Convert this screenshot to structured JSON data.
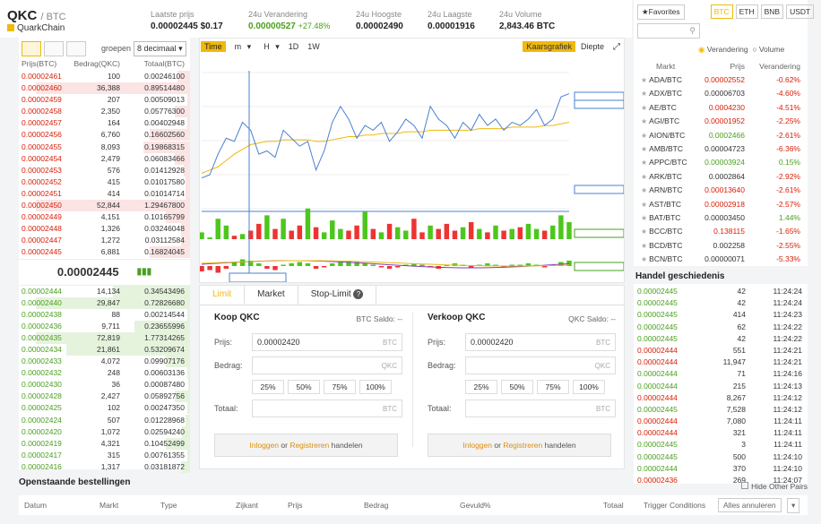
{
  "header": {
    "symbol": "QKC",
    "quote": "/ BTC",
    "coin_name": "QuarkChain",
    "stats": [
      {
        "label": "Laatste prijs",
        "value": "0.00002445 $0.17"
      },
      {
        "label": "24u Verandering",
        "value": "0.00000527",
        "change": "+27.48%"
      },
      {
        "label": "24u Hoogste",
        "value": "0.00002490"
      },
      {
        "label": "24u Laagste",
        "value": "0.00001916"
      },
      {
        "label": "24u Volume",
        "value": "2,843.46 BTC"
      }
    ]
  },
  "orderbook": {
    "group_label": "groepen",
    "group_value": "8 decimaal",
    "columns": [
      "Prijs(BTC)",
      "Bedrag(QKC)",
      "Totaal(BTC)"
    ],
    "sells": [
      [
        "0.00002461",
        "100",
        "0.00246100",
        8
      ],
      [
        "0.00002460",
        "36,388",
        "0.89514480",
        100
      ],
      [
        "0.00002459",
        "207",
        "0.00509013",
        2
      ],
      [
        "0.00002458",
        "2,350",
        "0.05776300",
        10
      ],
      [
        "0.00002457",
        "164",
        "0.00402948",
        2
      ],
      [
        "0.00002456",
        "6,760",
        "0.16602560",
        26
      ],
      [
        "0.00002455",
        "8,093",
        "0.19868315",
        30
      ],
      [
        "0.00002454",
        "2,479",
        "0.06083466",
        10
      ],
      [
        "0.00002453",
        "576",
        "0.01412928",
        4
      ],
      [
        "0.00002452",
        "415",
        "0.01017580",
        3
      ],
      [
        "0.00002451",
        "414",
        "0.01014714",
        3
      ],
      [
        "0.00002450",
        "52,844",
        "1.29467800",
        100
      ],
      [
        "0.00002449",
        "4,151",
        "0.10165799",
        16
      ],
      [
        "0.00002448",
        "1,326",
        "0.03246048",
        6
      ],
      [
        "0.00002447",
        "1,272",
        "0.03112584",
        6
      ],
      [
        "0.00002445",
        "6,881",
        "0.16824045",
        26
      ]
    ],
    "last": "0.00002445",
    "buys": [
      [
        "0.00002444",
        "14,134",
        "0.34543496",
        50
      ],
      [
        "0.00002440",
        "29,847",
        "0.72826680",
        100
      ],
      [
        "0.00002438",
        "88",
        "0.00214544",
        2
      ],
      [
        "0.00002436",
        "9,711",
        "0.23655996",
        36
      ],
      [
        "0.00002435",
        "72,819",
        "1.77314265",
        100
      ],
      [
        "0.00002434",
        "21,861",
        "0.53209674",
        80
      ],
      [
        "0.00002433",
        "4,072",
        "0.09907176",
        16
      ],
      [
        "0.00002432",
        "248",
        "0.00603136",
        2
      ],
      [
        "0.00002430",
        "36",
        "0.00087480",
        1
      ],
      [
        "0.00002428",
        "2,427",
        "0.05892756",
        10
      ],
      [
        "0.00002425",
        "102",
        "0.00247350",
        2
      ],
      [
        "0.00002424",
        "507",
        "0.01228968",
        3
      ],
      [
        "0.00002420",
        "1,072",
        "0.02594240",
        5
      ],
      [
        "0.00002419",
        "4,321",
        "0.10452499",
        16
      ],
      [
        "0.00002417",
        "315",
        "0.00761355",
        2
      ],
      [
        "0.00002416",
        "1,317",
        "0.03181872",
        6
      ]
    ]
  },
  "chart": {
    "intervals": [
      "Time",
      "m",
      "H",
      "1D",
      "1W"
    ],
    "kline_label": "Kaarsgrafiek",
    "depth_label": "Diepte",
    "ohlc_text": "2018-06-11 10:32  O:0.00002405 H:0.00002421 L:0.00002401 C:0.00002419 CHANGE:0.58% AMPLITUDE:0.83%",
    "av_text": "AVL:0.000024",
    "vol_text": "VOL 53750.0000",
    "macd_text": "MACD(12, 26, 9): 0.000000, -0.000000, -0.000000",
    "price_ticks": [
      "0.00002425",
      "0.00002400"
    ],
    "price_labels": [
      "0.00002450",
      "0.00002445",
      "0.00002374"
    ],
    "vol_ticks": [
      "187498.00"
    ],
    "vol_label": "81677.000000",
    "macd_label": "0.00000003",
    "time_ticks": [
      "10:40",
      "10:50",
      "11:00",
      "11:10",
      "11:20"
    ],
    "cursor_time": "2018-06-11 10:32",
    "price_line": [
      2395,
      2397,
      2410,
      2420,
      2418,
      2430,
      2425,
      2410,
      2412,
      2408,
      2425,
      2420,
      2415,
      2418,
      2400,
      2412,
      2430,
      2440,
      2432,
      2420,
      2428,
      2425,
      2430,
      2418,
      2424,
      2432,
      2428,
      2420,
      2440,
      2432,
      2428,
      2420,
      2430,
      2425,
      2435,
      2428,
      2432,
      2425,
      2430,
      2428,
      2432,
      2438,
      2428,
      2432,
      2446,
      2448
    ],
    "ma_line": [
      2398,
      2400,
      2402,
      2406,
      2410,
      2413,
      2416,
      2417,
      2418,
      2418,
      2419,
      2419,
      2419,
      2419,
      2418,
      2418,
      2419,
      2420,
      2421,
      2421,
      2422,
      2422,
      2423,
      2423,
      2423,
      2424,
      2424,
      2424,
      2425,
      2425,
      2425,
      2425,
      2425,
      2425,
      2426,
      2426,
      2426,
      2426,
      2427,
      2427,
      2427,
      2427,
      2428,
      2428,
      2429,
      2430
    ],
    "volumes": [
      20,
      5,
      60,
      40,
      10,
      15,
      25,
      45,
      70,
      30,
      60,
      25,
      40,
      90,
      35,
      20,
      55,
      30,
      25,
      40,
      80,
      30,
      20,
      45,
      35,
      25,
      60,
      20,
      40,
      30,
      45,
      25,
      35,
      50,
      30,
      20,
      40,
      25,
      30,
      35,
      45,
      30,
      25,
      40,
      70,
      50
    ],
    "macd_hist": [
      -4,
      -3,
      -5,
      -2,
      3,
      5,
      4,
      2,
      -2,
      -3,
      1,
      2,
      3,
      2,
      -2,
      -1,
      2,
      3,
      4,
      3,
      2,
      1,
      -1,
      -2,
      -1,
      1,
      2,
      1,
      -1,
      -2,
      1,
      2,
      1,
      -1,
      1,
      2,
      1,
      -1,
      1,
      1,
      2,
      1,
      -1,
      1,
      3,
      4
    ]
  },
  "trade": {
    "tabs": [
      "Limit",
      "Market",
      "Stop-Limit"
    ],
    "buy": {
      "title": "Koop QKC",
      "saldo": "BTC Saldo: --",
      "price_label": "Prijs:",
      "price": "0.00002420",
      "price_unit": "BTC",
      "amount_label": "Bedrag:",
      "amount_unit": "QKC",
      "total_label": "Totaal:",
      "total_unit": "BTC"
    },
    "sell": {
      "title": "Verkoop QKC",
      "saldo": "QKC Saldo: --",
      "price_label": "Prijs:",
      "price": "0.00002420",
      "price_unit": "BTC",
      "amount_label": "Bedrag:",
      "amount_unit": "QKC",
      "total_label": "Totaal:",
      "total_unit": "BTC"
    },
    "percents": [
      "25%",
      "50%",
      "75%",
      "100%"
    ],
    "login": "Inloggen",
    "or": "or",
    "register": "Registreren",
    "handle": "handelen"
  },
  "market": {
    "favorites": "Favorites",
    "quotes": [
      "BTC",
      "ETH",
      "BNB",
      "USDT"
    ],
    "radio1": "Verandering",
    "radio2": "Volume",
    "columns": [
      "Markt",
      "Prijs",
      "Verandering"
    ],
    "rows": [
      [
        "ADA/BTC",
        "0.00002552",
        "-0.62%",
        "r"
      ],
      [
        "ADX/BTC",
        "0.00006703",
        "-4.60%",
        "n"
      ],
      [
        "AE/BTC",
        "0.0004230",
        "-4.51%",
        "r"
      ],
      [
        "AGI/BTC",
        "0.00001952",
        "-2.25%",
        "r"
      ],
      [
        "AION/BTC",
        "0.0002466",
        "-2.61%",
        "g"
      ],
      [
        "AMB/BTC",
        "0.00004723",
        "-6.36%",
        "n"
      ],
      [
        "APPC/BTC",
        "0.00003924",
        "0.15%",
        "g"
      ],
      [
        "ARK/BTC",
        "0.0002864",
        "-2.92%",
        "n"
      ],
      [
        "ARN/BTC",
        "0.00013640",
        "-2.61%",
        "r"
      ],
      [
        "AST/BTC",
        "0.00002918",
        "-2.57%",
        "r"
      ],
      [
        "BAT/BTC",
        "0.00003450",
        "1.44%",
        "n"
      ],
      [
        "BCC/BTC",
        "0.138115",
        "-1.65%",
        "r"
      ],
      [
        "BCD/BTC",
        "0.002258",
        "-2.55%",
        "n"
      ],
      [
        "BCN/BTC",
        "0.00000071",
        "-5.33%",
        "n"
      ]
    ]
  },
  "history": {
    "title": "Handel geschiedenis",
    "rows": [
      [
        "0.00002445",
        "42",
        "11:24:24",
        "g"
      ],
      [
        "0.00002445",
        "42",
        "11:24:24",
        "g"
      ],
      [
        "0.00002445",
        "414",
        "11:24:23",
        "g"
      ],
      [
        "0.00002445",
        "62",
        "11:24:22",
        "g"
      ],
      [
        "0.00002445",
        "42",
        "11:24:22",
        "g"
      ],
      [
        "0.00002444",
        "551",
        "11:24:21",
        "r"
      ],
      [
        "0.00002444",
        "11,947",
        "11:24:21",
        "r"
      ],
      [
        "0.00002444",
        "71",
        "11:24:16",
        "g"
      ],
      [
        "0.00002444",
        "215",
        "11:24:13",
        "g"
      ],
      [
        "0.00002444",
        "8,267",
        "11:24:12",
        "r"
      ],
      [
        "0.00002445",
        "7,528",
        "11:24:12",
        "g"
      ],
      [
        "0.00002444",
        "7,080",
        "11:24:11",
        "r"
      ],
      [
        "0.00002444",
        "321",
        "11:24:11",
        "r"
      ],
      [
        "0.00002445",
        "3",
        "11:24:11",
        "g"
      ],
      [
        "0.00002445",
        "500",
        "11:24:10",
        "g"
      ],
      [
        "0.00002444",
        "370",
        "11:24:10",
        "g"
      ],
      [
        "0.00002436",
        "269",
        "11:24:07",
        "r"
      ]
    ]
  },
  "orders": {
    "title": "Openstaande bestellingen",
    "hide": "Hide Other Pairs",
    "cancel_all": "Alles annuleren",
    "columns": [
      "Datum",
      "Markt",
      "Type",
      "Zijkant",
      "Prijs",
      "Bedrag",
      "Gevuld%",
      "Totaal",
      "Trigger Conditions"
    ]
  }
}
